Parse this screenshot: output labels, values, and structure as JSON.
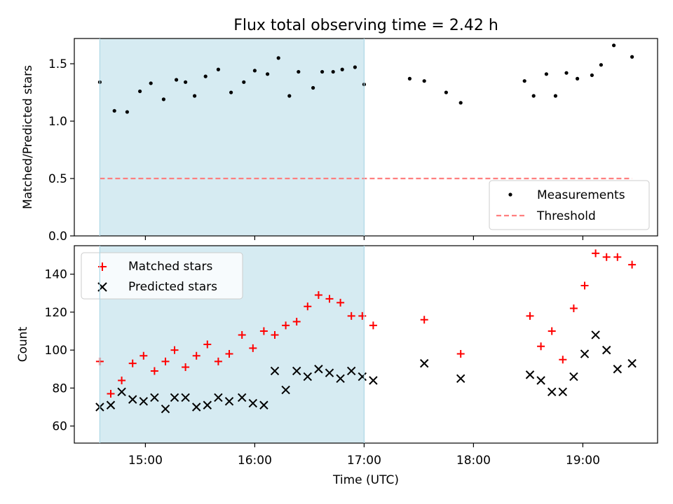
{
  "title": "Flux total observing time = 2.42 h",
  "colors": {
    "shade": "#add8e6",
    "threshold": "#ff7f7f",
    "matched": "#ff0000",
    "predicted": "#000000",
    "measurements": "#000000"
  },
  "chart_data": [
    {
      "type": "scatter",
      "ylabel": "Matched/Predicted stars",
      "xlim": [
        "14:21",
        "19:41"
      ],
      "ylim": [
        0,
        1.72
      ],
      "yticks": [
        "0.0",
        "0.5",
        "1.0",
        "1.5"
      ],
      "shaded_region": [
        "14:35",
        "17:00"
      ],
      "legend": {
        "position": "lower-right",
        "entries": [
          "Measurements",
          "Threshold"
        ]
      },
      "threshold": {
        "name": "Threshold",
        "y": 0.5,
        "x": [
          "14:35",
          "19:27"
        ]
      },
      "series": [
        {
          "name": "Measurements",
          "x": [
            "14:35",
            "14:43",
            "14:50",
            "14:57",
            "15:03",
            "15:10",
            "15:17",
            "15:22",
            "15:27",
            "15:33",
            "15:40",
            "15:47",
            "15:54",
            "16:00",
            "16:07",
            "16:13",
            "16:19",
            "16:24",
            "16:32",
            "16:37",
            "16:43",
            "16:48",
            "16:55",
            "17:00",
            "17:25",
            "17:33",
            "17:45",
            "17:53",
            "18:28",
            "18:33",
            "18:40",
            "18:45",
            "18:51",
            "18:57",
            "19:05",
            "19:10",
            "19:17",
            "19:27"
          ],
          "y": [
            1.34,
            1.09,
            1.08,
            1.26,
            1.33,
            1.19,
            1.36,
            1.34,
            1.22,
            1.39,
            1.45,
            1.25,
            1.34,
            1.44,
            1.41,
            1.55,
            1.22,
            1.43,
            1.29,
            1.43,
            1.43,
            1.45,
            1.47,
            1.32,
            1.37,
            1.35,
            1.25,
            1.16,
            1.35,
            1.22,
            1.41,
            1.22,
            1.42,
            1.37,
            1.4,
            1.49,
            1.66,
            1.56
          ]
        }
      ]
    },
    {
      "type": "scatter",
      "xlabel": "Time (UTC)",
      "ylabel": "Count",
      "xlim": [
        "14:21",
        "19:41"
      ],
      "ylim": [
        51,
        155
      ],
      "xticks": [
        "15:00",
        "16:00",
        "17:00",
        "18:00",
        "19:00"
      ],
      "yticks": [
        "60",
        "80",
        "100",
        "120",
        "140"
      ],
      "shaded_region": [
        "14:35",
        "17:00"
      ],
      "legend": {
        "position": "upper-left",
        "entries": [
          "Matched stars",
          "Predicted stars"
        ]
      },
      "series": [
        {
          "name": "Matched stars",
          "marker": "+",
          "x": [
            "14:35",
            "14:41",
            "14:47",
            "14:53",
            "14:59",
            "15:05",
            "15:11",
            "15:16",
            "15:22",
            "15:28",
            "15:34",
            "15:40",
            "15:46",
            "15:53",
            "15:59",
            "16:05",
            "16:11",
            "16:17",
            "16:23",
            "16:29",
            "16:35",
            "16:41",
            "16:47",
            "16:53",
            "16:59",
            "17:05",
            "17:33",
            "17:53",
            "18:31",
            "18:37",
            "18:43",
            "18:49",
            "18:55",
            "19:01",
            "19:07",
            "19:13",
            "19:19",
            "19:27"
          ],
          "y": [
            94,
            77,
            84,
            93,
            97,
            89,
            94,
            100,
            91,
            97,
            103,
            94,
            98,
            108,
            101,
            110,
            108,
            113,
            115,
            123,
            129,
            127,
            125,
            118,
            118,
            113,
            116,
            98,
            118,
            102,
            110,
            95,
            122,
            134,
            151,
            149,
            149,
            145
          ]
        },
        {
          "name": "Predicted stars",
          "marker": "x",
          "x": [
            "14:35",
            "14:41",
            "14:47",
            "14:53",
            "14:59",
            "15:05",
            "15:11",
            "15:16",
            "15:22",
            "15:28",
            "15:34",
            "15:40",
            "15:46",
            "15:53",
            "15:59",
            "16:05",
            "16:11",
            "16:17",
            "16:23",
            "16:29",
            "16:35",
            "16:41",
            "16:47",
            "16:53",
            "16:59",
            "17:05",
            "17:33",
            "17:53",
            "18:31",
            "18:37",
            "18:43",
            "18:49",
            "18:55",
            "19:01",
            "19:07",
            "19:13",
            "19:19",
            "19:27"
          ],
          "y": [
            70,
            71,
            78,
            74,
            73,
            75,
            69,
            75,
            75,
            70,
            71,
            75,
            73,
            75,
            72,
            71,
            89,
            79,
            89,
            86,
            90,
            88,
            85,
            89,
            86,
            84,
            93,
            85,
            87,
            84,
            78,
            78,
            86,
            98,
            108,
            100,
            90,
            93
          ]
        }
      ]
    }
  ]
}
